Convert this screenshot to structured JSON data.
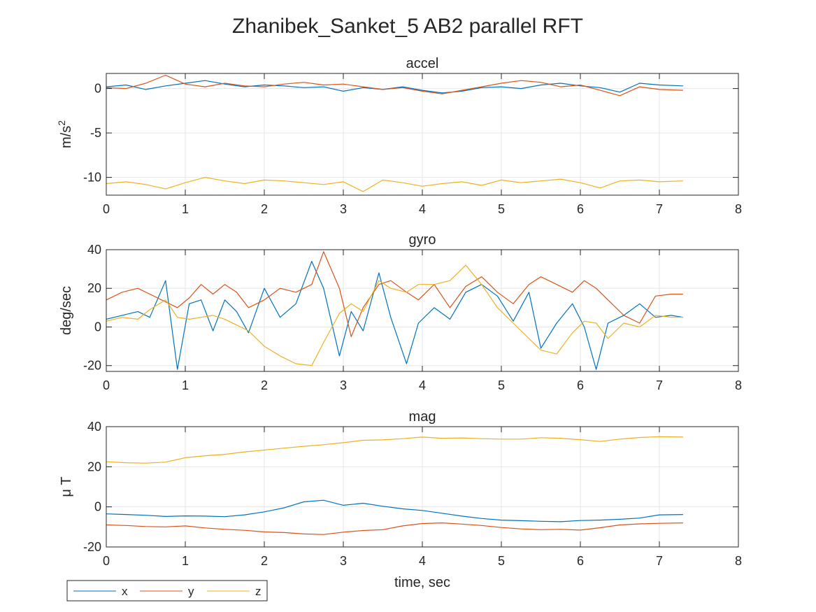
{
  "figure": {
    "title": "Zhanibek_Sanket_5 AB2 parallel RFT",
    "xlabel": "time, sec"
  },
  "legend": {
    "placement": "bottom-left, outside plot area",
    "entries": [
      {
        "label": "x",
        "color": "#0072BD"
      },
      {
        "label": "y",
        "color": "#D95319"
      },
      {
        "label": "z",
        "color": "#EDB120"
      }
    ]
  },
  "chart_data": [
    {
      "type": "line",
      "title": "accel",
      "ylabel": "m/s",
      "ylabel_sup": "2",
      "xlabel": "",
      "xlim": [
        0,
        8
      ],
      "ylim": [
        -12,
        1.7
      ],
      "xticks": [
        "0",
        "1",
        "2",
        "3",
        "4",
        "5",
        "6",
        "7",
        "8"
      ],
      "yticks": [
        {
          "v": 0,
          "label": "0"
        },
        {
          "v": -5,
          "label": "-5"
        },
        {
          "v": -10,
          "label": "-10"
        }
      ],
      "grid": true,
      "x": [
        0,
        0.25,
        0.5,
        0.75,
        1,
        1.25,
        1.5,
        1.75,
        2,
        2.25,
        2.5,
        2.75,
        3,
        3.25,
        3.5,
        3.75,
        4,
        4.25,
        4.5,
        4.75,
        5,
        5.25,
        5.5,
        5.75,
        6,
        6.25,
        6.5,
        6.75,
        7,
        7.3
      ],
      "series": [
        {
          "name": "x",
          "color": "#0072BD",
          "values": [
            0.2,
            0.4,
            -0.1,
            0.3,
            0.6,
            0.9,
            0.5,
            0.2,
            0.4,
            0.3,
            0.1,
            0.2,
            -0.3,
            0.1,
            -0.1,
            0.2,
            -0.2,
            -0.5,
            -0.3,
            0.1,
            0.2,
            0.0,
            0.4,
            0.6,
            0.3,
            0.1,
            -0.4,
            0.6,
            0.4,
            0.3
          ]
        },
        {
          "name": "y",
          "color": "#D95319",
          "values": [
            0.1,
            0.0,
            0.6,
            1.5,
            0.5,
            0.2,
            0.6,
            0.3,
            0.2,
            0.5,
            0.7,
            0.4,
            0.5,
            0.2,
            -0.1,
            0.1,
            -0.3,
            -0.6,
            -0.2,
            0.2,
            0.6,
            0.9,
            0.7,
            0.2,
            0.4,
            -0.2,
            -0.8,
            0.2,
            -0.1,
            -0.2
          ]
        },
        {
          "name": "z",
          "color": "#EDB120",
          "values": [
            -10.7,
            -10.5,
            -10.8,
            -11.3,
            -10.6,
            -10.0,
            -10.4,
            -10.7,
            -10.3,
            -10.4,
            -10.6,
            -10.8,
            -10.5,
            -11.6,
            -10.3,
            -10.6,
            -11.0,
            -10.7,
            -10.5,
            -10.9,
            -10.3,
            -10.6,
            -10.4,
            -10.2,
            -10.6,
            -11.2,
            -10.4,
            -10.3,
            -10.5,
            -10.4
          ]
        }
      ]
    },
    {
      "type": "line",
      "title": "gyro",
      "ylabel": "deg/sec",
      "ylabel_sup": "",
      "xlabel": "",
      "xlim": [
        0,
        8
      ],
      "ylim": [
        -23,
        40
      ],
      "xticks": [
        "0",
        "1",
        "2",
        "3",
        "4",
        "5",
        "6",
        "7",
        "8"
      ],
      "yticks": [
        {
          "v": 40,
          "label": "40"
        },
        {
          "v": 20,
          "label": "20"
        },
        {
          "v": 0,
          "label": "0"
        },
        {
          "v": -20,
          "label": "-20"
        }
      ],
      "grid": true,
      "x": [
        0,
        0.2,
        0.4,
        0.55,
        0.75,
        0.9,
        1.05,
        1.2,
        1.35,
        1.5,
        1.65,
        1.8,
        2.0,
        2.2,
        2.4,
        2.6,
        2.75,
        2.95,
        3.1,
        3.25,
        3.45,
        3.6,
        3.8,
        3.95,
        4.15,
        4.35,
        4.55,
        4.75,
        4.95,
        5.15,
        5.35,
        5.5,
        5.7,
        5.9,
        6.05,
        6.2,
        6.35,
        6.55,
        6.75,
        6.95,
        7.15,
        7.3
      ],
      "series": [
        {
          "name": "x",
          "color": "#0072BD",
          "values": [
            4,
            6,
            8,
            5,
            24,
            -22,
            12,
            14,
            -2,
            14,
            8,
            -3,
            20,
            5,
            12,
            34,
            20,
            -15,
            8,
            -2,
            28,
            5,
            -19,
            2,
            10,
            4,
            18,
            22,
            16,
            3,
            18,
            -11,
            2,
            12,
            0,
            -22,
            2,
            6,
            12,
            5,
            6,
            5
          ]
        },
        {
          "name": "y",
          "color": "#D95319",
          "values": [
            14,
            18,
            20,
            17,
            13,
            10,
            15,
            22,
            17,
            22,
            18,
            10,
            14,
            20,
            18,
            22,
            39,
            20,
            -5,
            10,
            22,
            24,
            18,
            14,
            22,
            10,
            21,
            26,
            18,
            12,
            22,
            26,
            22,
            18,
            24,
            20,
            14,
            6,
            2,
            16,
            17,
            17
          ]
        },
        {
          "name": "z",
          "color": "#EDB120",
          "values": [
            3,
            5,
            4,
            9,
            14,
            5,
            4,
            5,
            6,
            4,
            1,
            -2,
            -10,
            -15,
            -19,
            -20,
            -8,
            7,
            12,
            8,
            24,
            20,
            18,
            22,
            22,
            24,
            32,
            22,
            10,
            2,
            -6,
            -12,
            -14,
            -3,
            3,
            2,
            -6,
            2,
            0,
            6,
            5,
            5
          ]
        }
      ]
    },
    {
      "type": "line",
      "title": "mag",
      "ylabel": "μ T",
      "ylabel_sup": "",
      "xlabel": "time, sec",
      "xlim": [
        0,
        8
      ],
      "ylim": [
        -20,
        40
      ],
      "xticks": [
        "0",
        "1",
        "2",
        "3",
        "4",
        "5",
        "6",
        "7",
        "8"
      ],
      "yticks": [
        {
          "v": 40,
          "label": "40"
        },
        {
          "v": 20,
          "label": "20"
        },
        {
          "v": 0,
          "label": "0"
        },
        {
          "v": -20,
          "label": "-20"
        }
      ],
      "grid": true,
      "x": [
        0,
        0.25,
        0.5,
        0.75,
        1,
        1.25,
        1.5,
        1.75,
        2,
        2.25,
        2.5,
        2.75,
        3,
        3.25,
        3.5,
        3.75,
        4,
        4.25,
        4.5,
        4.75,
        5,
        5.25,
        5.5,
        5.75,
        6,
        6.25,
        6.5,
        6.75,
        7,
        7.3
      ],
      "series": [
        {
          "name": "x",
          "color": "#0072BD",
          "values": [
            -3.5,
            -3.8,
            -4.2,
            -4.8,
            -4.5,
            -4.6,
            -4.9,
            -4.0,
            -2.5,
            -0.5,
            2.5,
            3.3,
            0.8,
            1.8,
            0.3,
            -1.0,
            -1.8,
            -3.2,
            -4.6,
            -5.8,
            -6.6,
            -6.9,
            -7.2,
            -7.4,
            -6.8,
            -6.6,
            -6.2,
            -5.6,
            -4.0,
            -3.8
          ]
        },
        {
          "name": "y",
          "color": "#D95319",
          "values": [
            -9.0,
            -9.3,
            -9.8,
            -10.0,
            -9.5,
            -10.5,
            -11.2,
            -11.7,
            -12.5,
            -12.8,
            -13.5,
            -13.8,
            -12.6,
            -11.8,
            -11.4,
            -9.5,
            -8.3,
            -8.0,
            -8.6,
            -9.3,
            -10.3,
            -11.0,
            -11.4,
            -11.2,
            -11.6,
            -10.4,
            -9.0,
            -8.5,
            -8.2,
            -8.0
          ]
        },
        {
          "name": "z",
          "color": "#EDB120",
          "values": [
            22.5,
            22.0,
            21.8,
            22.3,
            24.5,
            25.5,
            26.2,
            27.4,
            28.3,
            29.3,
            30.2,
            31.0,
            32.0,
            33.2,
            33.4,
            34.0,
            34.8,
            34.2,
            34.4,
            34.0,
            33.8,
            33.8,
            34.5,
            34.2,
            33.5,
            32.6,
            33.8,
            34.6,
            35.0,
            34.8
          ]
        }
      ]
    }
  ]
}
